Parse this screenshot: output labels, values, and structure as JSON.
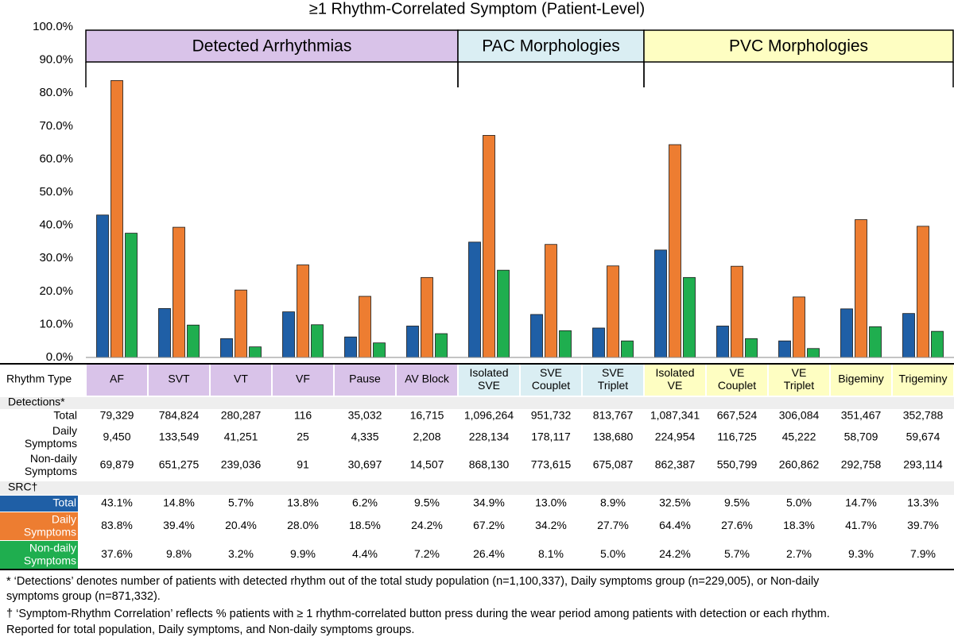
{
  "chart_data": {
    "type": "bar",
    "title": "≥1 Rhythm-Correlated Symptom (Patient-Level)",
    "ylim": [
      0,
      100
    ],
    "yticks": [
      {
        "value": 0,
        "label": "0.0%"
      },
      {
        "value": 10,
        "label": "10.0%"
      },
      {
        "value": 20,
        "label": "20.0%"
      },
      {
        "value": 30,
        "label": "30.0%"
      },
      {
        "value": 40,
        "label": "40.0%"
      },
      {
        "value": 50,
        "label": "50.0%"
      },
      {
        "value": 60,
        "label": "60.0%"
      },
      {
        "value": 70,
        "label": "70.0%"
      },
      {
        "value": 80,
        "label": "80.0%"
      },
      {
        "value": 90,
        "label": "90.0%"
      },
      {
        "value": 100,
        "label": "100.0%"
      }
    ],
    "groups": [
      {
        "label": "Detected Arrhythmias",
        "color": "#d9c3e9"
      },
      {
        "label": "PAC Morphologies",
        "color": "#daeef3"
      },
      {
        "label": "PVC Morphologies",
        "color": "#fefec2"
      }
    ],
    "category_header": "Rhythm Type",
    "categories": [
      "AF",
      "SVT",
      "VT",
      "VF",
      "Pause",
      "AV Block",
      "Isolated\nSVE",
      "SVE\nCouplet",
      "SVE\nTriplet",
      "Isolated\nVE",
      "VE\nCouplet",
      "VE\nTriplet",
      "Bigeminy",
      "Trigeminy"
    ],
    "category_colors": [
      "#d9c3e9",
      "#d9c3e9",
      "#d9c3e9",
      "#d9c3e9",
      "#d9c3e9",
      "#d9c3e9",
      "#daeef3",
      "#daeef3",
      "#daeef3",
      "#fefec2",
      "#fefec2",
      "#fefec2",
      "#fefec2",
      "#fefec2"
    ],
    "series_header": "SRC†",
    "series": [
      {
        "name": "Total",
        "color": "#1f5fa6",
        "values": [
          43.1,
          14.8,
          5.7,
          13.8,
          6.2,
          9.5,
          34.9,
          13.0,
          8.9,
          32.5,
          9.5,
          5.0,
          14.7,
          13.3
        ],
        "value_labels": [
          "43.1%",
          "14.8%",
          "5.7%",
          "13.8%",
          "6.2%",
          "9.5%",
          "34.9%",
          "13.0%",
          "8.9%",
          "32.5%",
          "9.5%",
          "5.0%",
          "14.7%",
          "13.3%"
        ]
      },
      {
        "name": "Daily\nSymptoms",
        "color": "#ed7d31",
        "values": [
          83.8,
          39.4,
          20.4,
          28.0,
          18.5,
          24.2,
          67.2,
          34.2,
          27.7,
          64.4,
          27.6,
          18.3,
          41.7,
          39.7
        ],
        "value_labels": [
          "83.8%",
          "39.4%",
          "20.4%",
          "28.0%",
          "18.5%",
          "24.2%",
          "67.2%",
          "34.2%",
          "27.7%",
          "64.4%",
          "27.6%",
          "18.3%",
          "41.7%",
          "39.7%"
        ]
      },
      {
        "name": "Non-daily\nSymptoms",
        "color": "#1fae4f",
        "values": [
          37.6,
          9.8,
          3.2,
          9.9,
          4.4,
          7.2,
          26.4,
          8.1,
          5.0,
          24.2,
          5.7,
          2.7,
          9.3,
          7.9
        ],
        "value_labels": [
          "37.6%",
          "9.8%",
          "3.2%",
          "9.9%",
          "4.4%",
          "7.2%",
          "26.4%",
          "8.1%",
          "5.0%",
          "24.2%",
          "5.7%",
          "2.7%",
          "9.3%",
          "7.9%"
        ]
      }
    ],
    "detections": {
      "label": "Detections*",
      "rows": [
        {
          "label": "Total",
          "values": [
            "79,329",
            "784,824",
            "280,287",
            "116",
            "35,032",
            "16,715",
            "1,096,264",
            "951,732",
            "813,767",
            "1,087,341",
            "667,524",
            "306,084",
            "351,467",
            "352,788"
          ]
        },
        {
          "label": "Daily\nSymptoms",
          "values": [
            "9,450",
            "133,549",
            "41,251",
            "25",
            "4,335",
            "2,208",
            "228,134",
            "178,117",
            "138,680",
            "224,954",
            "116,725",
            "45,222",
            "58,709",
            "59,674"
          ]
        },
        {
          "label": "Non-daily\nSymptoms",
          "values": [
            "69,879",
            "651,275",
            "239,036",
            "91",
            "30,697",
            "14,507",
            "868,130",
            "773,615",
            "675,087",
            "862,387",
            "550,799",
            "260,862",
            "292,758",
            "293,114"
          ]
        }
      ]
    },
    "footnotes": [
      "* ‘Detections’ denotes number of patients with detected rhythm out of the total study population (n=1,100,337), Daily symptoms group (n=229,005), or Non-daily",
      "symptoms group (n=871,332).",
      "† ‘Symptom-Rhythm Correlation’ reflects % patients with ≥ 1 rhythm-correlated button press during the wear period among patients with detection or each rhythm.",
      "Reported for total population, Daily symptoms, and Non-daily symptoms groups."
    ]
  }
}
